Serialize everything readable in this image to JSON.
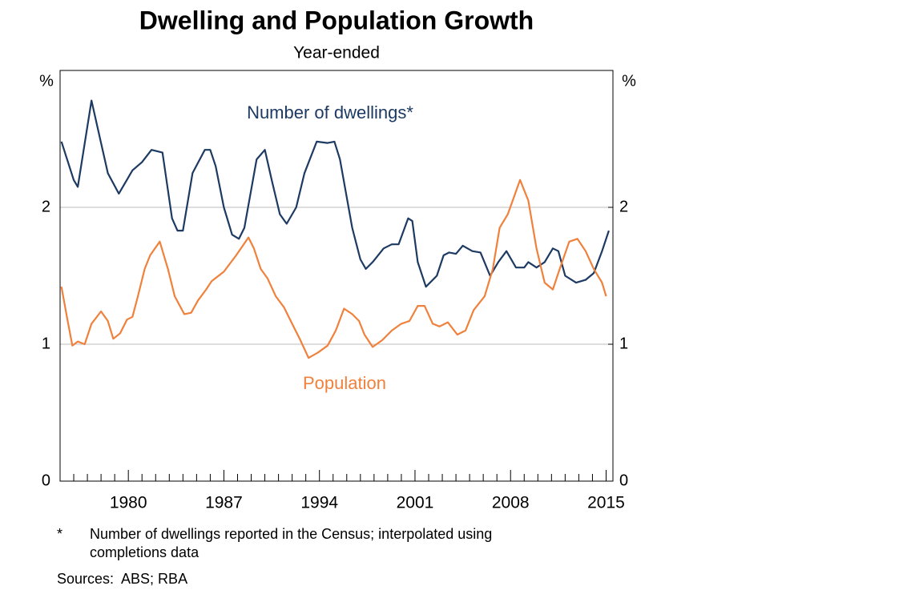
{
  "chart_data": {
    "type": "line",
    "title": "Dwelling and Population Growth",
    "subtitle": "Year-ended",
    "y_unit": "%",
    "y2_unit": "%",
    "xlim": [
      1975,
      2015.5
    ],
    "xticks": [
      1980,
      1987,
      1994,
      2001,
      2008,
      2015
    ],
    "xminor_ticks": [
      1976,
      1977,
      1978,
      1979,
      1981,
      1982,
      1983,
      1984,
      1985,
      1986,
      1988,
      1989,
      1990,
      1991,
      1992,
      1993,
      1995,
      1996,
      1997,
      1998,
      1999,
      2000,
      2002,
      2003,
      2004,
      2005,
      2006,
      2007,
      2009,
      2010,
      2011,
      2012,
      2013,
      2014
    ],
    "ylim": [
      0,
      3
    ],
    "yticks": [
      0,
      1,
      2
    ],
    "y2lim": [
      0,
      3
    ],
    "y2ticks": [
      0,
      1,
      2
    ],
    "grid": true,
    "series": [
      {
        "name": "Number of dwellings*",
        "color": "#1d3a62",
        "x": [
          1975.1,
          1976.0,
          1976.3,
          1977.3,
          1978.5,
          1979.3,
          1980.3,
          1981.0,
          1981.7,
          1982.5,
          1983.2,
          1983.6,
          1984.0,
          1984.7,
          1985.6,
          1986.0,
          1986.4,
          1987.0,
          1987.6,
          1988.1,
          1988.5,
          1989.4,
          1990.0,
          1990.5,
          1991.1,
          1991.6,
          1992.3,
          1992.9,
          1993.8,
          1994.6,
          1995.1,
          1995.5,
          1996.4,
          1997.0,
          1997.4,
          1997.9,
          1998.7,
          1999.3,
          1999.8,
          2000.5,
          2000.8,
          2001.2,
          2001.8,
          2002.6,
          2003.1,
          2003.5,
          2004.0,
          2004.5,
          2005.2,
          2005.8,
          2006.5,
          2007.1,
          2007.7,
          2008.4,
          2009.0,
          2009.3,
          2009.9,
          2010.5,
          2011.1,
          2011.5,
          2012.0,
          2012.8,
          2013.5,
          2014.1,
          2014.7,
          2015.2
        ],
        "values": [
          2.48,
          2.2,
          2.15,
          2.78,
          2.25,
          2.1,
          2.27,
          2.33,
          2.42,
          2.4,
          1.92,
          1.83,
          1.83,
          2.25,
          2.42,
          2.42,
          2.3,
          2.0,
          1.8,
          1.77,
          1.85,
          2.35,
          2.42,
          2.2,
          1.95,
          1.88,
          2.0,
          2.25,
          2.48,
          2.47,
          2.48,
          2.35,
          1.85,
          1.62,
          1.55,
          1.6,
          1.7,
          1.73,
          1.73,
          1.92,
          1.9,
          1.6,
          1.42,
          1.5,
          1.65,
          1.67,
          1.66,
          1.72,
          1.68,
          1.67,
          1.5,
          1.6,
          1.68,
          1.56,
          1.56,
          1.6,
          1.56,
          1.6,
          1.7,
          1.68,
          1.5,
          1.45,
          1.47,
          1.52,
          1.68,
          1.83
        ]
      },
      {
        "name": "Population",
        "color": "#f0813c",
        "x": [
          1975.1,
          1975.5,
          1975.9,
          1976.3,
          1976.8,
          1977.3,
          1978.0,
          1978.5,
          1978.9,
          1979.4,
          1979.9,
          1980.3,
          1980.7,
          1981.2,
          1981.6,
          1982.3,
          1982.9,
          1983.4,
          1984.1,
          1984.6,
          1985.1,
          1985.7,
          1986.1,
          1987.0,
          1987.9,
          1988.8,
          1989.2,
          1989.7,
          1990.2,
          1990.8,
          1991.4,
          1992.0,
          1992.6,
          1993.2,
          1993.9,
          1994.6,
          1995.2,
          1995.8,
          1996.4,
          1996.9,
          1997.3,
          1997.9,
          1998.6,
          1999.3,
          2000.0,
          2000.6,
          2001.2,
          2001.7,
          2002.3,
          2002.8,
          2003.4,
          2004.1,
          2004.7,
          2005.3,
          2006.1,
          2006.7,
          2007.2,
          2007.8,
          2008.7,
          2009.3,
          2009.9,
          2010.5,
          2011.1,
          2011.6,
          2012.3,
          2012.9,
          2013.5,
          2014.1,
          2014.7,
          2015.0
        ],
        "values": [
          1.42,
          1.2,
          0.99,
          1.02,
          1.0,
          1.15,
          1.24,
          1.17,
          1.04,
          1.08,
          1.18,
          1.2,
          1.35,
          1.55,
          1.65,
          1.75,
          1.55,
          1.35,
          1.22,
          1.23,
          1.32,
          1.4,
          1.46,
          1.53,
          1.65,
          1.78,
          1.7,
          1.55,
          1.48,
          1.35,
          1.27,
          1.15,
          1.03,
          0.9,
          0.94,
          0.99,
          1.1,
          1.26,
          1.22,
          1.17,
          1.07,
          0.98,
          1.03,
          1.1,
          1.15,
          1.17,
          1.28,
          1.28,
          1.15,
          1.13,
          1.16,
          1.07,
          1.1,
          1.25,
          1.35,
          1.55,
          1.85,
          1.95,
          2.2,
          2.05,
          1.7,
          1.45,
          1.4,
          1.55,
          1.75,
          1.77,
          1.68,
          1.55,
          1.45,
          1.35
        ]
      }
    ],
    "footnote_marker": "*",
    "footnote": "Number of dwellings reported in the Census; interpolated using completions data",
    "sources": "Sources:  ABS; RBA"
  }
}
